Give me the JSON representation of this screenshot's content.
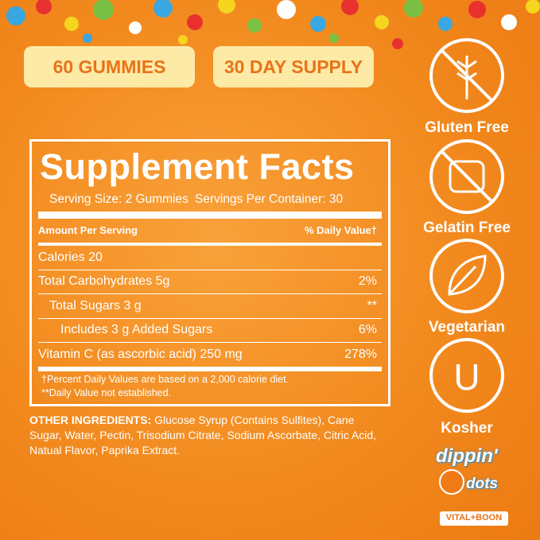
{
  "badges": [
    "60 GUMMIES",
    "30 DAY SUPPLY"
  ],
  "supplement_facts": {
    "title": "Supplement Facts",
    "serving_size": "Serving Size: 2 Gummies",
    "servings_per_container": "Servings Per Container: 30",
    "header": {
      "amount": "Amount Per Serving",
      "daily_value": "% Daily Value†"
    },
    "rows": [
      {
        "label": "Calories 20",
        "indent": 0
      },
      {
        "label": "Total Carbohydrates 5g",
        "dv": "2%",
        "indent": 0
      },
      {
        "label": "Total Sugars 3 g",
        "dv": "**",
        "indent": 1
      },
      {
        "label": "Includes 3 g Added Sugars",
        "dv": "6%",
        "indent": 2
      },
      {
        "label": "Vitamin C (as ascorbic acid) 250 mg",
        "dv": "278%",
        "indent": 0
      }
    ],
    "footnotes": [
      "†Percent Daily Values are based on a 2,000 calorie diet.",
      "**Daily Value not established."
    ]
  },
  "other_ingredients": {
    "label": "OTHER INGREDIENTS:",
    "text": "Glucose Syrup (Contains Sulfites), Cane Sugar, Water, Pectin, Trisodium Citrate, Sodium Ascorbate, Citric Acid, Natual Flavor, Paprika Extract."
  },
  "claims": [
    "Gluten Free",
    "Gelatin Free",
    "Vegetarian",
    "Kosher"
  ],
  "brand": {
    "top": "dippin'",
    "bottom": "dots",
    "tag": "VITAL+BOON"
  }
}
